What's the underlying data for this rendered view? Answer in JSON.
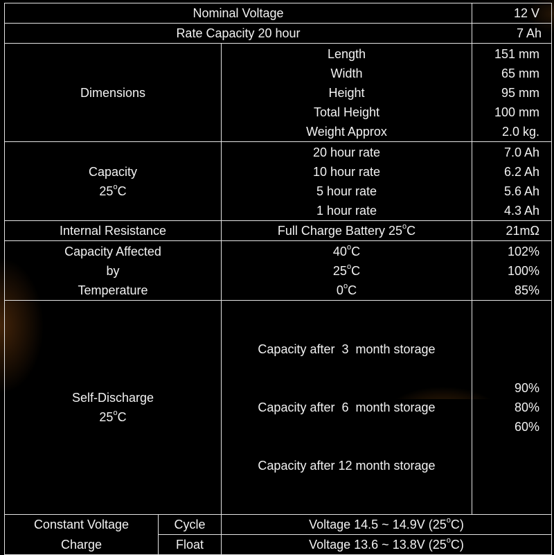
{
  "rows": {
    "nominal_voltage": {
      "label": "Nominal Voltage",
      "value": "12 V"
    },
    "rate_capacity": {
      "label": "Rate Capacity 20 hour",
      "value": "7 Ah"
    },
    "dimensions": {
      "label": "Dimensions",
      "items": [
        {
          "name": "Length",
          "value": "151 mm"
        },
        {
          "name": "Width",
          "value": "65 mm"
        },
        {
          "name": "Height",
          "value": "95 mm"
        },
        {
          "name": "Total Height",
          "value": "100 mm"
        },
        {
          "name": "Weight Approx",
          "value": "2.0 kg."
        }
      ]
    },
    "capacity": {
      "label_line1": "Capacity",
      "label_temp": "25",
      "items": [
        {
          "name": "20 hour rate",
          "value": "7.0 Ah"
        },
        {
          "name": "10 hour rate",
          "value": "6.2 Ah"
        },
        {
          "name": "5 hour rate",
          "value": "5.6 Ah"
        },
        {
          "name": "1 hour rate",
          "value": "4.3 Ah"
        }
      ]
    },
    "internal_resistance": {
      "label": "Internal Resistance",
      "condition_prefix": "Full Charge Battery 25",
      "value": "21mΩ"
    },
    "temperature": {
      "label_lines": [
        "Capacity Affected",
        "by",
        "Temperature"
      ],
      "items": [
        {
          "temp": "40",
          "value": "102%"
        },
        {
          "temp": "25",
          "value": "100%"
        },
        {
          "temp": "0",
          "value": "85%"
        }
      ]
    },
    "self_discharge": {
      "label_line1": "Self-Discharge",
      "label_temp": "25",
      "items": [
        {
          "name": "Capacity after  3  month storage",
          "value": "90%"
        },
        {
          "name": "Capacity after  6  month storage",
          "value": "80%"
        },
        {
          "name": "Capacity after 12 month storage",
          "value": "60%"
        }
      ]
    },
    "charge": {
      "label_line1": "Constant Voltage",
      "label_line2": "Charge",
      "cycle": {
        "mode": "Cycle",
        "value_prefix": "Voltage 14.5 ~ 14.9V (25"
      },
      "float": {
        "mode": "Float",
        "value_prefix": "Voltage 13.6 ~ 13.8V (25"
      }
    }
  },
  "units": {
    "degree": "o",
    "celsius": "C",
    "close_paren": "C)"
  }
}
